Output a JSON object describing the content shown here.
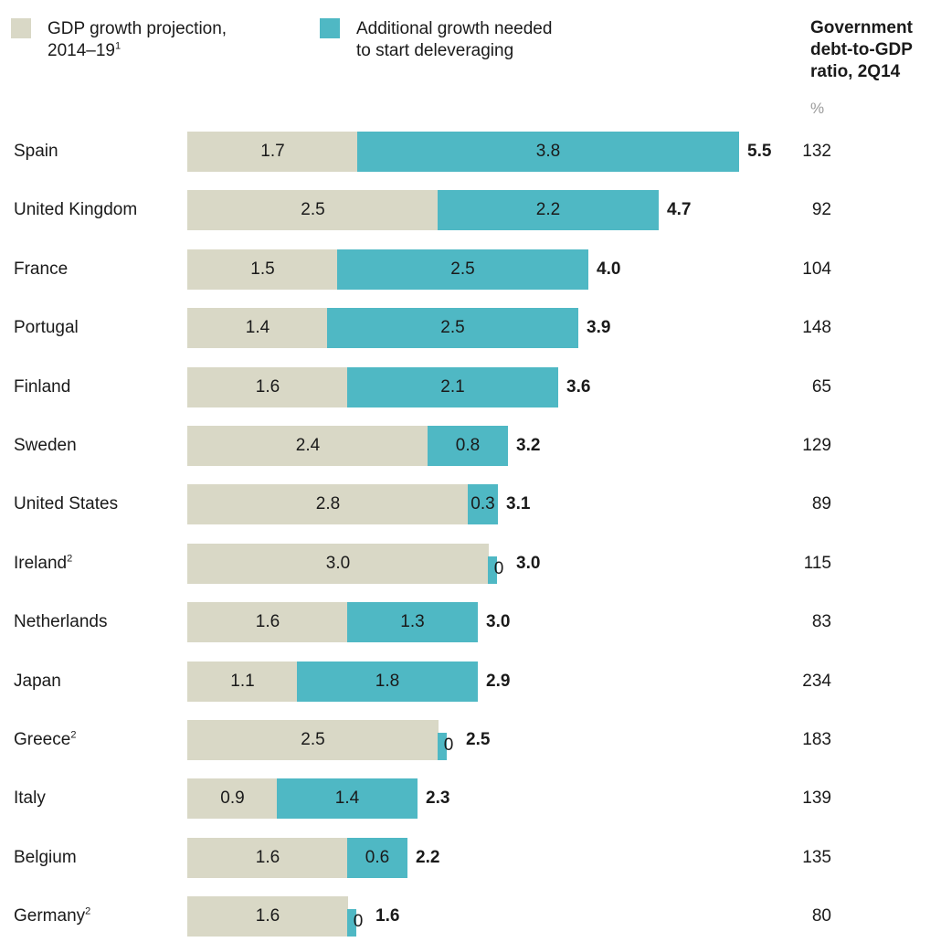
{
  "legend": [
    {
      "label": "GDP growth projection,",
      "label_line2": "2014–19",
      "footnote": "1",
      "color": "#d9d8c6"
    },
    {
      "label": "Additional growth needed",
      "label_line2": "to start deleveraging",
      "color": "#4fb8c4"
    }
  ],
  "debt_column": {
    "header_line1": "Government",
    "header_line2": "debt-to-GDP",
    "header_line3": "ratio, 2Q14",
    "unit": "%"
  },
  "chart_data": {
    "type": "bar",
    "orientation": "horizontal",
    "stacked": true,
    "categories": [
      "Spain",
      "United Kingdom",
      "France",
      "Portugal",
      "Finland",
      "Sweden",
      "United States",
      "Ireland",
      "Netherlands",
      "Japan",
      "Greece",
      "Italy",
      "Belgium",
      "Germany"
    ],
    "category_footnotes": [
      "",
      "",
      "",
      "",
      "",
      "",
      "",
      "2",
      "",
      "",
      "2",
      "",
      "",
      "2"
    ],
    "series": [
      {
        "name": "GDP growth projection, 2014–19",
        "color": "#d9d8c6",
        "values": [
          1.7,
          2.5,
          1.5,
          1.4,
          1.6,
          2.4,
          2.8,
          3.0,
          1.6,
          1.1,
          2.5,
          0.9,
          1.6,
          1.6
        ],
        "labels": [
          "1.7",
          "2.5",
          "1.5",
          "1.4",
          "1.6",
          "2.4",
          "2.8",
          "3.0",
          "1.6",
          "1.1",
          "2.5",
          "0.9",
          "1.6",
          "1.6"
        ]
      },
      {
        "name": "Additional growth needed to start deleveraging",
        "color": "#4fb8c4",
        "values": [
          3.8,
          2.2,
          2.5,
          2.5,
          2.1,
          0.8,
          0.3,
          0,
          1.3,
          1.8,
          0,
          1.4,
          0.6,
          0
        ],
        "labels": [
          "3.8",
          "2.2",
          "2.5",
          "2.5",
          "2.1",
          "0.8",
          "0.3",
          "0",
          "1.3",
          "1.8",
          "0",
          "1.4",
          "0.6",
          "0"
        ]
      }
    ],
    "totals": [
      "5.5",
      "4.7",
      "4.0",
      "3.9",
      "3.6",
      "3.2",
      "3.1",
      "3.0",
      "3.0",
      "2.9",
      "2.5",
      "2.3",
      "2.2",
      "1.6"
    ],
    "debt_to_gdp": [
      "132",
      "92",
      "104",
      "148",
      "65",
      "129",
      "89",
      "115",
      "83",
      "234",
      "183",
      "139",
      "135",
      "80"
    ]
  }
}
